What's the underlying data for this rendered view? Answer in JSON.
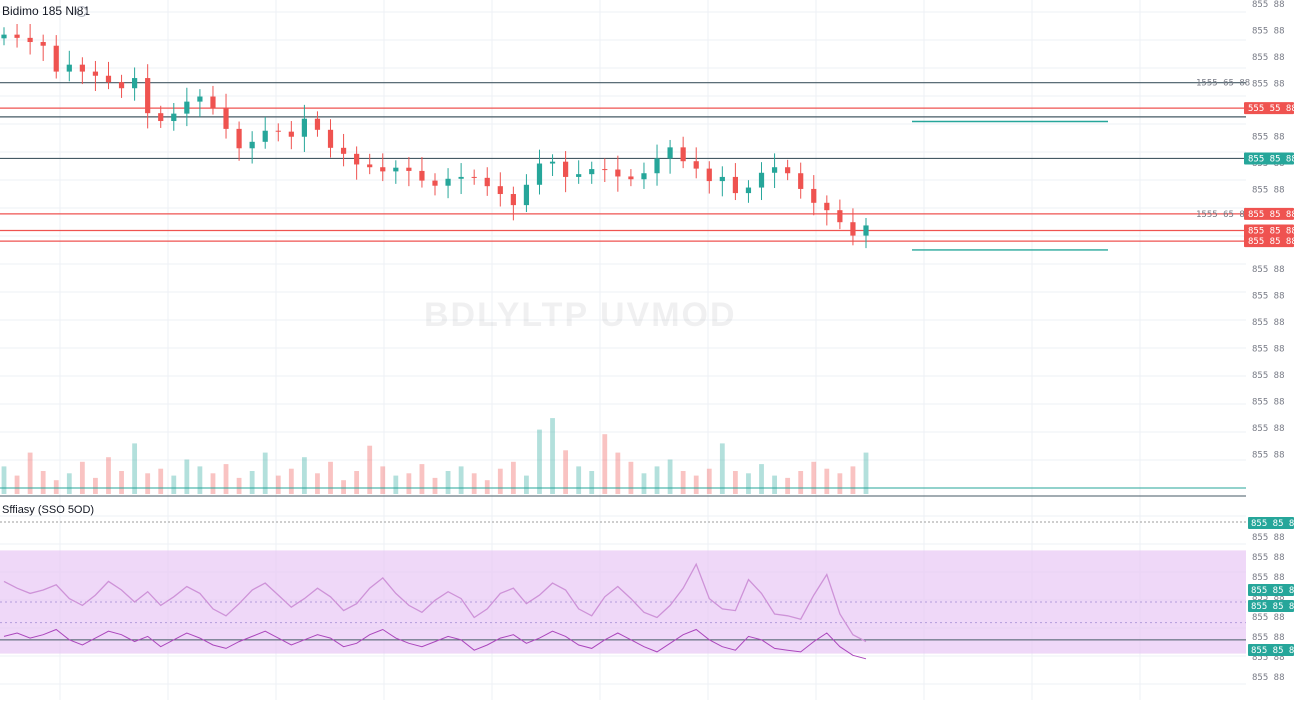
{
  "header": {
    "symbol_title": "Bidimo 185 Nl81"
  },
  "watermark": "BDLYLTP UVMOD",
  "oscillator": {
    "title": "Sffiasy (SSO 5OD)"
  },
  "colors": {
    "up": "#26a69a",
    "down": "#ef5350",
    "grid": "#eef1f6",
    "hline_dark": "#455a64",
    "hline_red": "#ef5350",
    "hline_teal": "#26a69a",
    "osc_band": "#e8c7f5",
    "osc_line": "#ce93d8",
    "osc_line2": "#ab47bc"
  },
  "chart_data": {
    "type": "candlestick",
    "title": "Bidimo 185 Nl81",
    "ylim": [
      0,
      100
    ],
    "price_ticks": [
      "855 88",
      "855 88",
      "855 88",
      "855 88",
      "855 88",
      "855 88",
      "855 88",
      "855 88",
      "855 88",
      "855 88",
      "855 88",
      "855 88",
      "855 88",
      "855 88",
      "855 88",
      "855 88",
      "855 88",
      "855 88"
    ],
    "horizontal_lines": [
      {
        "value": 86.0,
        "color": "dark",
        "label": "1555 65 88"
      },
      {
        "value": 80.5,
        "color": "red",
        "tag": "555 55 88"
      },
      {
        "value": 78.6,
        "color": "dark"
      },
      {
        "value": 69.6,
        "color": "dark",
        "tag": "855 85 88"
      },
      {
        "value": 57.6,
        "color": "red",
        "tag": "855 85 88",
        "label": "1555 65 88"
      },
      {
        "value": 54.0,
        "color": "red",
        "tag": "855 85 88"
      },
      {
        "value": 51.7,
        "color": "red",
        "tag": "855 85 88"
      }
    ],
    "segments": [
      {
        "value": 77.6,
        "color": "teal"
      },
      {
        "value": 49.8,
        "color": "teal"
      }
    ],
    "close": [
      96.4,
      95.7,
      94.8,
      94.0,
      88.4,
      89.9,
      88.4,
      87.5,
      86.1,
      84.8,
      87.0,
      79.4,
      77.7,
      79.3,
      81.9,
      83.0,
      80.6,
      76.0,
      71.8,
      73.2,
      75.6,
      75.4,
      74.3,
      78.2,
      75.8,
      71.9,
      70.6,
      68.3,
      67.7,
      66.8,
      67.6,
      66.9,
      64.8,
      63.7,
      65.2,
      65.6,
      65.4,
      63.6,
      61.9,
      59.5,
      63.9,
      68.5,
      68.9,
      65.6,
      66.2,
      67.3,
      67.2,
      65.7,
      65.1,
      66.4,
      69.6,
      72.0,
      69.0,
      67.4,
      64.7,
      65.6,
      62.1,
      63.3,
      66.5,
      67.7,
      66.4,
      63.0,
      60.0,
      58.4,
      55.8,
      52.9,
      55.1
    ],
    "volume": [
      12,
      8,
      18,
      10,
      6,
      9,
      14,
      7,
      16,
      10,
      22,
      9,
      11,
      8,
      15,
      12,
      9,
      13,
      7,
      10,
      18,
      8,
      11,
      16,
      9,
      14,
      6,
      10,
      21,
      12,
      8,
      9,
      13,
      7,
      10,
      12,
      9,
      6,
      11,
      14,
      8,
      28,
      33,
      19,
      12,
      10,
      26,
      18,
      14,
      9,
      12,
      15,
      10,
      8,
      11,
      22,
      10,
      9,
      13,
      8,
      7,
      10,
      14,
      11,
      9,
      12,
      18
    ],
    "oscillator": {
      "title": "Sffiasy (SSO 5OD)",
      "ylim": [
        0,
        100
      ],
      "upper_band": 80,
      "lower_band": 20,
      "upper_dotted": 50,
      "lower_dotted": 38,
      "mid_line": 28,
      "fast": [
        62,
        58,
        55,
        57,
        60,
        52,
        48,
        54,
        62,
        57,
        50,
        56,
        48,
        53,
        59,
        55,
        46,
        42,
        49,
        57,
        61,
        54,
        47,
        52,
        58,
        53,
        45,
        49,
        58,
        64,
        55,
        48,
        44,
        51,
        56,
        52,
        41,
        46,
        55,
        58,
        49,
        54,
        61,
        57,
        46,
        42,
        53,
        59,
        52,
        44,
        41,
        48,
        58,
        72,
        52,
        46,
        45,
        63,
        55,
        43,
        42,
        40,
        54,
        66,
        43,
        31,
        27
      ],
      "slow": [
        30,
        32,
        29,
        31,
        34,
        28,
        25,
        29,
        33,
        31,
        27,
        30,
        24,
        28,
        32,
        29,
        25,
        23,
        27,
        30,
        33,
        29,
        25,
        28,
        31,
        29,
        24,
        26,
        31,
        34,
        29,
        26,
        24,
        27,
        30,
        28,
        22,
        25,
        29,
        31,
        26,
        29,
        33,
        30,
        25,
        23,
        28,
        32,
        28,
        24,
        21,
        26,
        31,
        34,
        28,
        24,
        22,
        30,
        28,
        23,
        22,
        21,
        27,
        32,
        24,
        19,
        17
      ],
      "tick_labels": [
        "855 88",
        "855 88",
        "855 88",
        "855 88",
        "855 88",
        "855 88",
        "855 88",
        "855 88"
      ],
      "tags": [
        "855 85 88",
        "855 85 88",
        "855 85 88",
        "855 85 88"
      ]
    }
  }
}
